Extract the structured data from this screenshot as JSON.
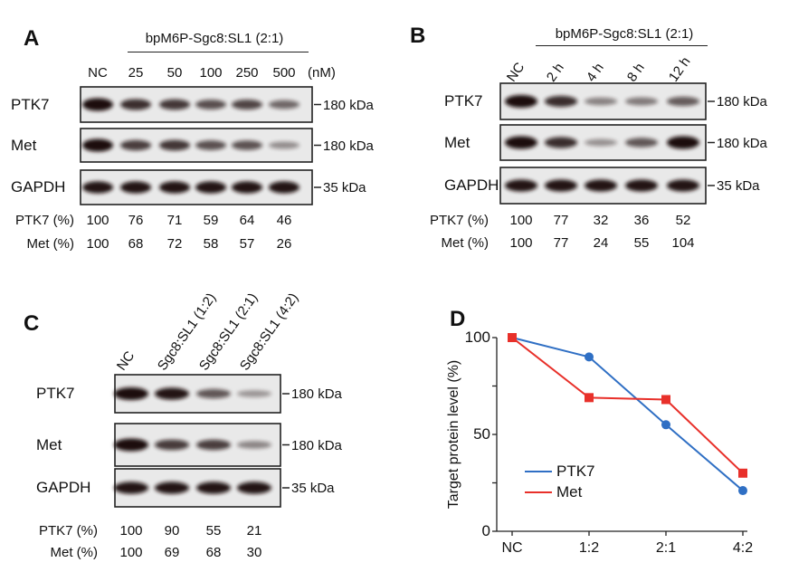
{
  "panels": {
    "A": {
      "letter": "A",
      "header": "bpM6P-Sgc8:SL1 (2:1)",
      "lanes": [
        "NC",
        "25",
        "50",
        "100",
        "250",
        "500"
      ],
      "unit": "(nM)",
      "blots": [
        {
          "label": "PTK7",
          "marker": "180 kDa"
        },
        {
          "label": "Met",
          "marker": "180 kDa"
        },
        {
          "label": "GAPDH",
          "marker": "35 kDa"
        }
      ],
      "quant": [
        {
          "label": "PTK7 (%)",
          "values": [
            "100",
            "76",
            "71",
            "59",
            "64",
            "46"
          ]
        },
        {
          "label": "Met (%)",
          "values": [
            "100",
            "68",
            "72",
            "58",
            "57",
            "26"
          ]
        }
      ]
    },
    "B": {
      "letter": "B",
      "header": "bpM6P-Sgc8:SL1 (2:1)",
      "lanes": [
        "NC",
        "2 h",
        "4 h",
        "8 h",
        "12 h"
      ],
      "blots": [
        {
          "label": "PTK7",
          "marker": "180 kDa"
        },
        {
          "label": "Met",
          "marker": "180 kDa"
        },
        {
          "label": "GAPDH",
          "marker": "35 kDa"
        }
      ],
      "quant": [
        {
          "label": "PTK7 (%)",
          "values": [
            "100",
            "77",
            "32",
            "36",
            "52"
          ]
        },
        {
          "label": "Met (%)",
          "values": [
            "100",
            "77",
            "24",
            "55",
            "104"
          ]
        }
      ]
    },
    "C": {
      "letter": "C",
      "lanes": [
        "NC",
        "Sgc8:SL1 (1:2)",
        "Sgc8:SL1 (2:1)",
        "Sgc8:SL1 (4:2)"
      ],
      "blots": [
        {
          "label": "PTK7",
          "marker": "180 kDa"
        },
        {
          "label": "Met",
          "marker": "180 kDa"
        },
        {
          "label": "GAPDH",
          "marker": "35 kDa"
        }
      ],
      "quant": [
        {
          "label": "PTK7 (%)",
          "values": [
            "100",
            "90",
            "55",
            "21"
          ]
        },
        {
          "label": "Met (%)",
          "values": [
            "100",
            "69",
            "68",
            "30"
          ]
        }
      ]
    },
    "D": {
      "letter": "D"
    }
  },
  "chart_data": {
    "type": "line",
    "title": "",
    "xlabel": "",
    "ylabel": "Target protein level (%)",
    "categories": [
      "NC",
      "1:2",
      "2:1",
      "4:2"
    ],
    "ylim": [
      0,
      100
    ],
    "yticks": [
      "0",
      "50",
      "100"
    ],
    "legend_position": "lower-left",
    "series": [
      {
        "name": "PTK7",
        "values": [
          100,
          90,
          55,
          21
        ],
        "color": "#2f6fc4",
        "marker": "circle"
      },
      {
        "name": "Met",
        "values": [
          100,
          69,
          68,
          30
        ],
        "color": "#e8302a",
        "marker": "square"
      }
    ]
  }
}
